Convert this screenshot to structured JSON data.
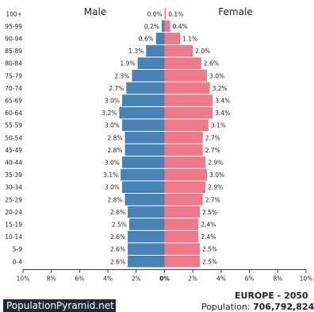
{
  "chart_data": {
    "type": "bar",
    "title_left": "Male",
    "title_right": "Female",
    "categories": [
      "100+",
      "95-99",
      "90-94",
      "85-89",
      "80-84",
      "75-79",
      "70-74",
      "65-69",
      "60-64",
      "55-59",
      "50-54",
      "45-49",
      "40-44",
      "35-39",
      "30-34",
      "25-29",
      "20-24",
      "15-19",
      "10-14",
      "5-9",
      "0-4"
    ],
    "series": [
      {
        "name": "Male",
        "color": "#4682b4",
        "values": [
          0.0,
          0.2,
          0.6,
          1.3,
          1.9,
          2.3,
          2.7,
          3.0,
          3.2,
          3.0,
          2.8,
          2.8,
          3.0,
          3.1,
          3.0,
          2.8,
          2.6,
          2.5,
          2.6,
          2.6,
          2.6
        ],
        "labels": [
          "0.0%",
          "0.2%",
          "0.6%",
          "1.3%",
          "1.9%",
          "2.3%",
          "2.7%",
          "3.0%",
          "3.2%",
          "3.0%",
          "2.8%",
          "2.8%",
          "3.0%",
          "3.1%",
          "3.0%",
          "2.8%",
          "2.6%",
          "2.5%",
          "2.6%",
          "2.6%",
          "2.6%"
        ]
      },
      {
        "name": "Female",
        "color": "#ee7989",
        "values": [
          0.1,
          0.4,
          1.1,
          2.0,
          2.6,
          3.0,
          3.2,
          3.4,
          3.4,
          3.1,
          2.7,
          2.7,
          2.9,
          3.0,
          2.9,
          2.7,
          2.5,
          2.4,
          2.4,
          2.5,
          2.5
        ],
        "labels": [
          "0.1%",
          "0.4%",
          "1.1%",
          "2.0%",
          "2.6%",
          "3.0%",
          "3.2%",
          "3.4%",
          "3.4%",
          "3.1%",
          "2.7%",
          "2.7%",
          "2.9%",
          "3.0%",
          "2.9%",
          "2.7%",
          "2.5%",
          "2.4%",
          "2.4%",
          "2.5%",
          "2.5%"
        ]
      }
    ],
    "x_ticks": [
      "10%",
      "8%",
      "6%",
      "4%",
      "2%",
      "0%",
      "2%",
      "4%",
      "6%",
      "8%",
      "10%"
    ],
    "xlim": [
      -10,
      10
    ],
    "grid": false
  },
  "footer": {
    "brand": "PopulationPyramid.net",
    "region": "EUROPE - 2050",
    "population_label": "Population: ",
    "population_value": "706,792,824"
  }
}
